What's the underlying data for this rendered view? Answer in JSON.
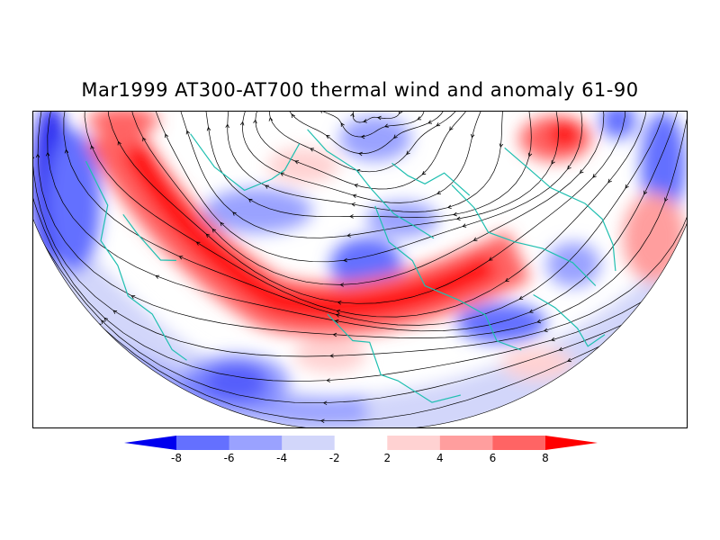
{
  "title": "Mar1999 AT300-AT700 thermal wind and anomaly 61-90",
  "colorbar": {
    "colors": [
      "#0000ee",
      "#6470ff",
      "#9aa2ff",
      "#d2d6fa",
      "#ffffff",
      "#ffd2d2",
      "#ff9e9e",
      "#ff6464",
      "#ff0000"
    ],
    "ticks": [
      "-8",
      "-6",
      "-4",
      "-2",
      "2",
      "4",
      "6",
      "8"
    ]
  },
  "map": {
    "coast_color": "#1fbfb0",
    "streamline_color": "#000000"
  }
}
